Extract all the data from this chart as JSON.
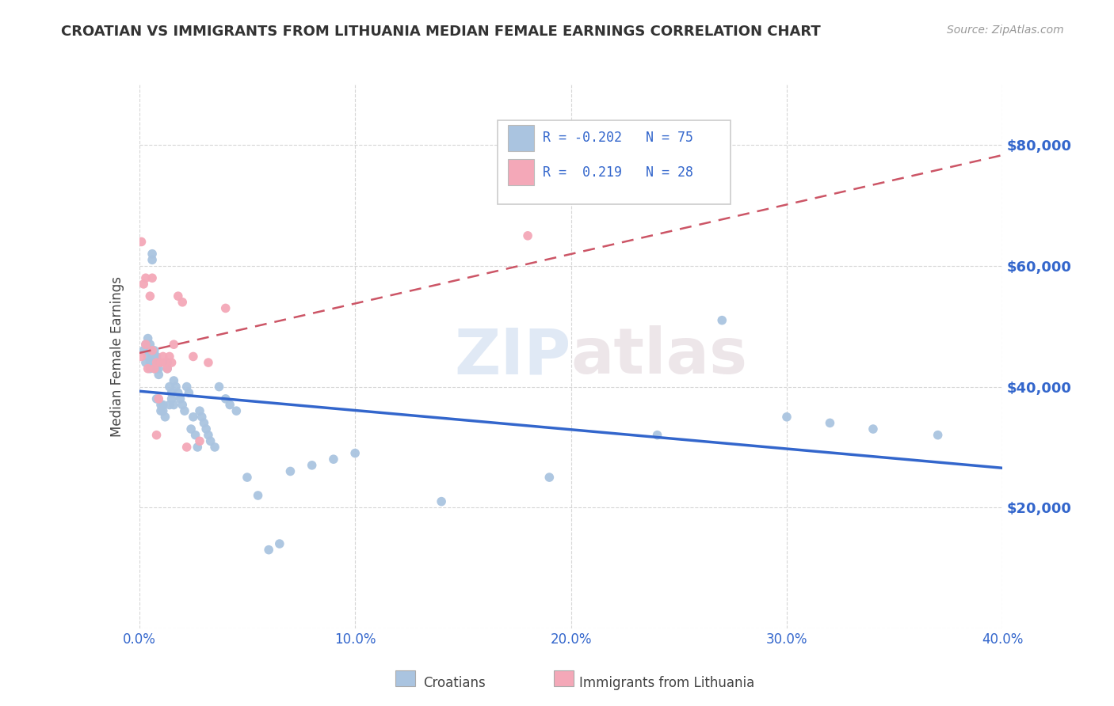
{
  "title": "CROATIAN VS IMMIGRANTS FROM LITHUANIA MEDIAN FEMALE EARNINGS CORRELATION CHART",
  "source": "Source: ZipAtlas.com",
  "ylabel": "Median Female Earnings",
  "xlim": [
    0.0,
    0.4
  ],
  "ylim": [
    0,
    90000
  ],
  "yticks": [
    0,
    20000,
    40000,
    60000,
    80000
  ],
  "ytick_labels": [
    "",
    "$20,000",
    "$40,000",
    "$60,000",
    "$80,000"
  ],
  "xticks": [
    0.0,
    0.1,
    0.2,
    0.3,
    0.4
  ],
  "xtick_labels": [
    "0.0%",
    "10.0%",
    "20.0%",
    "30.0%",
    "40.0%"
  ],
  "watermark_zip": "ZIP",
  "watermark_atlas": "atlas",
  "blue_color": "#aac4e0",
  "blue_line_color": "#3366cc",
  "pink_color": "#f4a8b8",
  "pink_line_color": "#cc5566",
  "title_color": "#333333",
  "axis_label_color": "#444444",
  "tick_label_color": "#3366cc",
  "grid_color": "#cccccc",
  "croatian_x": [
    0.002,
    0.003,
    0.003,
    0.004,
    0.004,
    0.005,
    0.005,
    0.005,
    0.005,
    0.006,
    0.006,
    0.006,
    0.006,
    0.007,
    0.007,
    0.007,
    0.007,
    0.008,
    0.008,
    0.008,
    0.008,
    0.009,
    0.009,
    0.009,
    0.01,
    0.01,
    0.011,
    0.011,
    0.012,
    0.013,
    0.013,
    0.014,
    0.014,
    0.015,
    0.015,
    0.016,
    0.016,
    0.017,
    0.018,
    0.019,
    0.02,
    0.021,
    0.022,
    0.023,
    0.024,
    0.025,
    0.026,
    0.027,
    0.028,
    0.029,
    0.03,
    0.031,
    0.032,
    0.033,
    0.035,
    0.037,
    0.04,
    0.042,
    0.045,
    0.05,
    0.055,
    0.06,
    0.065,
    0.07,
    0.08,
    0.09,
    0.1,
    0.14,
    0.19,
    0.24,
    0.27,
    0.3,
    0.32,
    0.34,
    0.37
  ],
  "croatian_y": [
    46000,
    47000,
    44000,
    48000,
    45000,
    46000,
    47000,
    43000,
    44000,
    45000,
    45000,
    61000,
    62000,
    44000,
    46000,
    45000,
    43000,
    43000,
    44000,
    38000,
    45000,
    44000,
    42000,
    43000,
    36000,
    37000,
    36000,
    37000,
    35000,
    44000,
    43000,
    37000,
    40000,
    39000,
    38000,
    37000,
    41000,
    40000,
    39000,
    38000,
    37000,
    36000,
    40000,
    39000,
    33000,
    35000,
    32000,
    30000,
    36000,
    35000,
    34000,
    33000,
    32000,
    31000,
    30000,
    40000,
    38000,
    37000,
    36000,
    25000,
    22000,
    13000,
    14000,
    26000,
    27000,
    28000,
    29000,
    21000,
    25000,
    32000,
    51000,
    35000,
    34000,
    33000,
    32000
  ],
  "lithuania_x": [
    0.001,
    0.002,
    0.003,
    0.004,
    0.005,
    0.006,
    0.006,
    0.007,
    0.008,
    0.009,
    0.01,
    0.011,
    0.012,
    0.013,
    0.014,
    0.015,
    0.016,
    0.018,
    0.02,
    0.022,
    0.025,
    0.028,
    0.032,
    0.04,
    0.18,
    0.001,
    0.003,
    0.008
  ],
  "lithuania_y": [
    64000,
    57000,
    58000,
    43000,
    55000,
    46000,
    58000,
    43000,
    44000,
    38000,
    44000,
    45000,
    44000,
    43000,
    45000,
    44000,
    47000,
    55000,
    54000,
    30000,
    45000,
    31000,
    44000,
    53000,
    65000,
    45000,
    47000,
    32000
  ]
}
